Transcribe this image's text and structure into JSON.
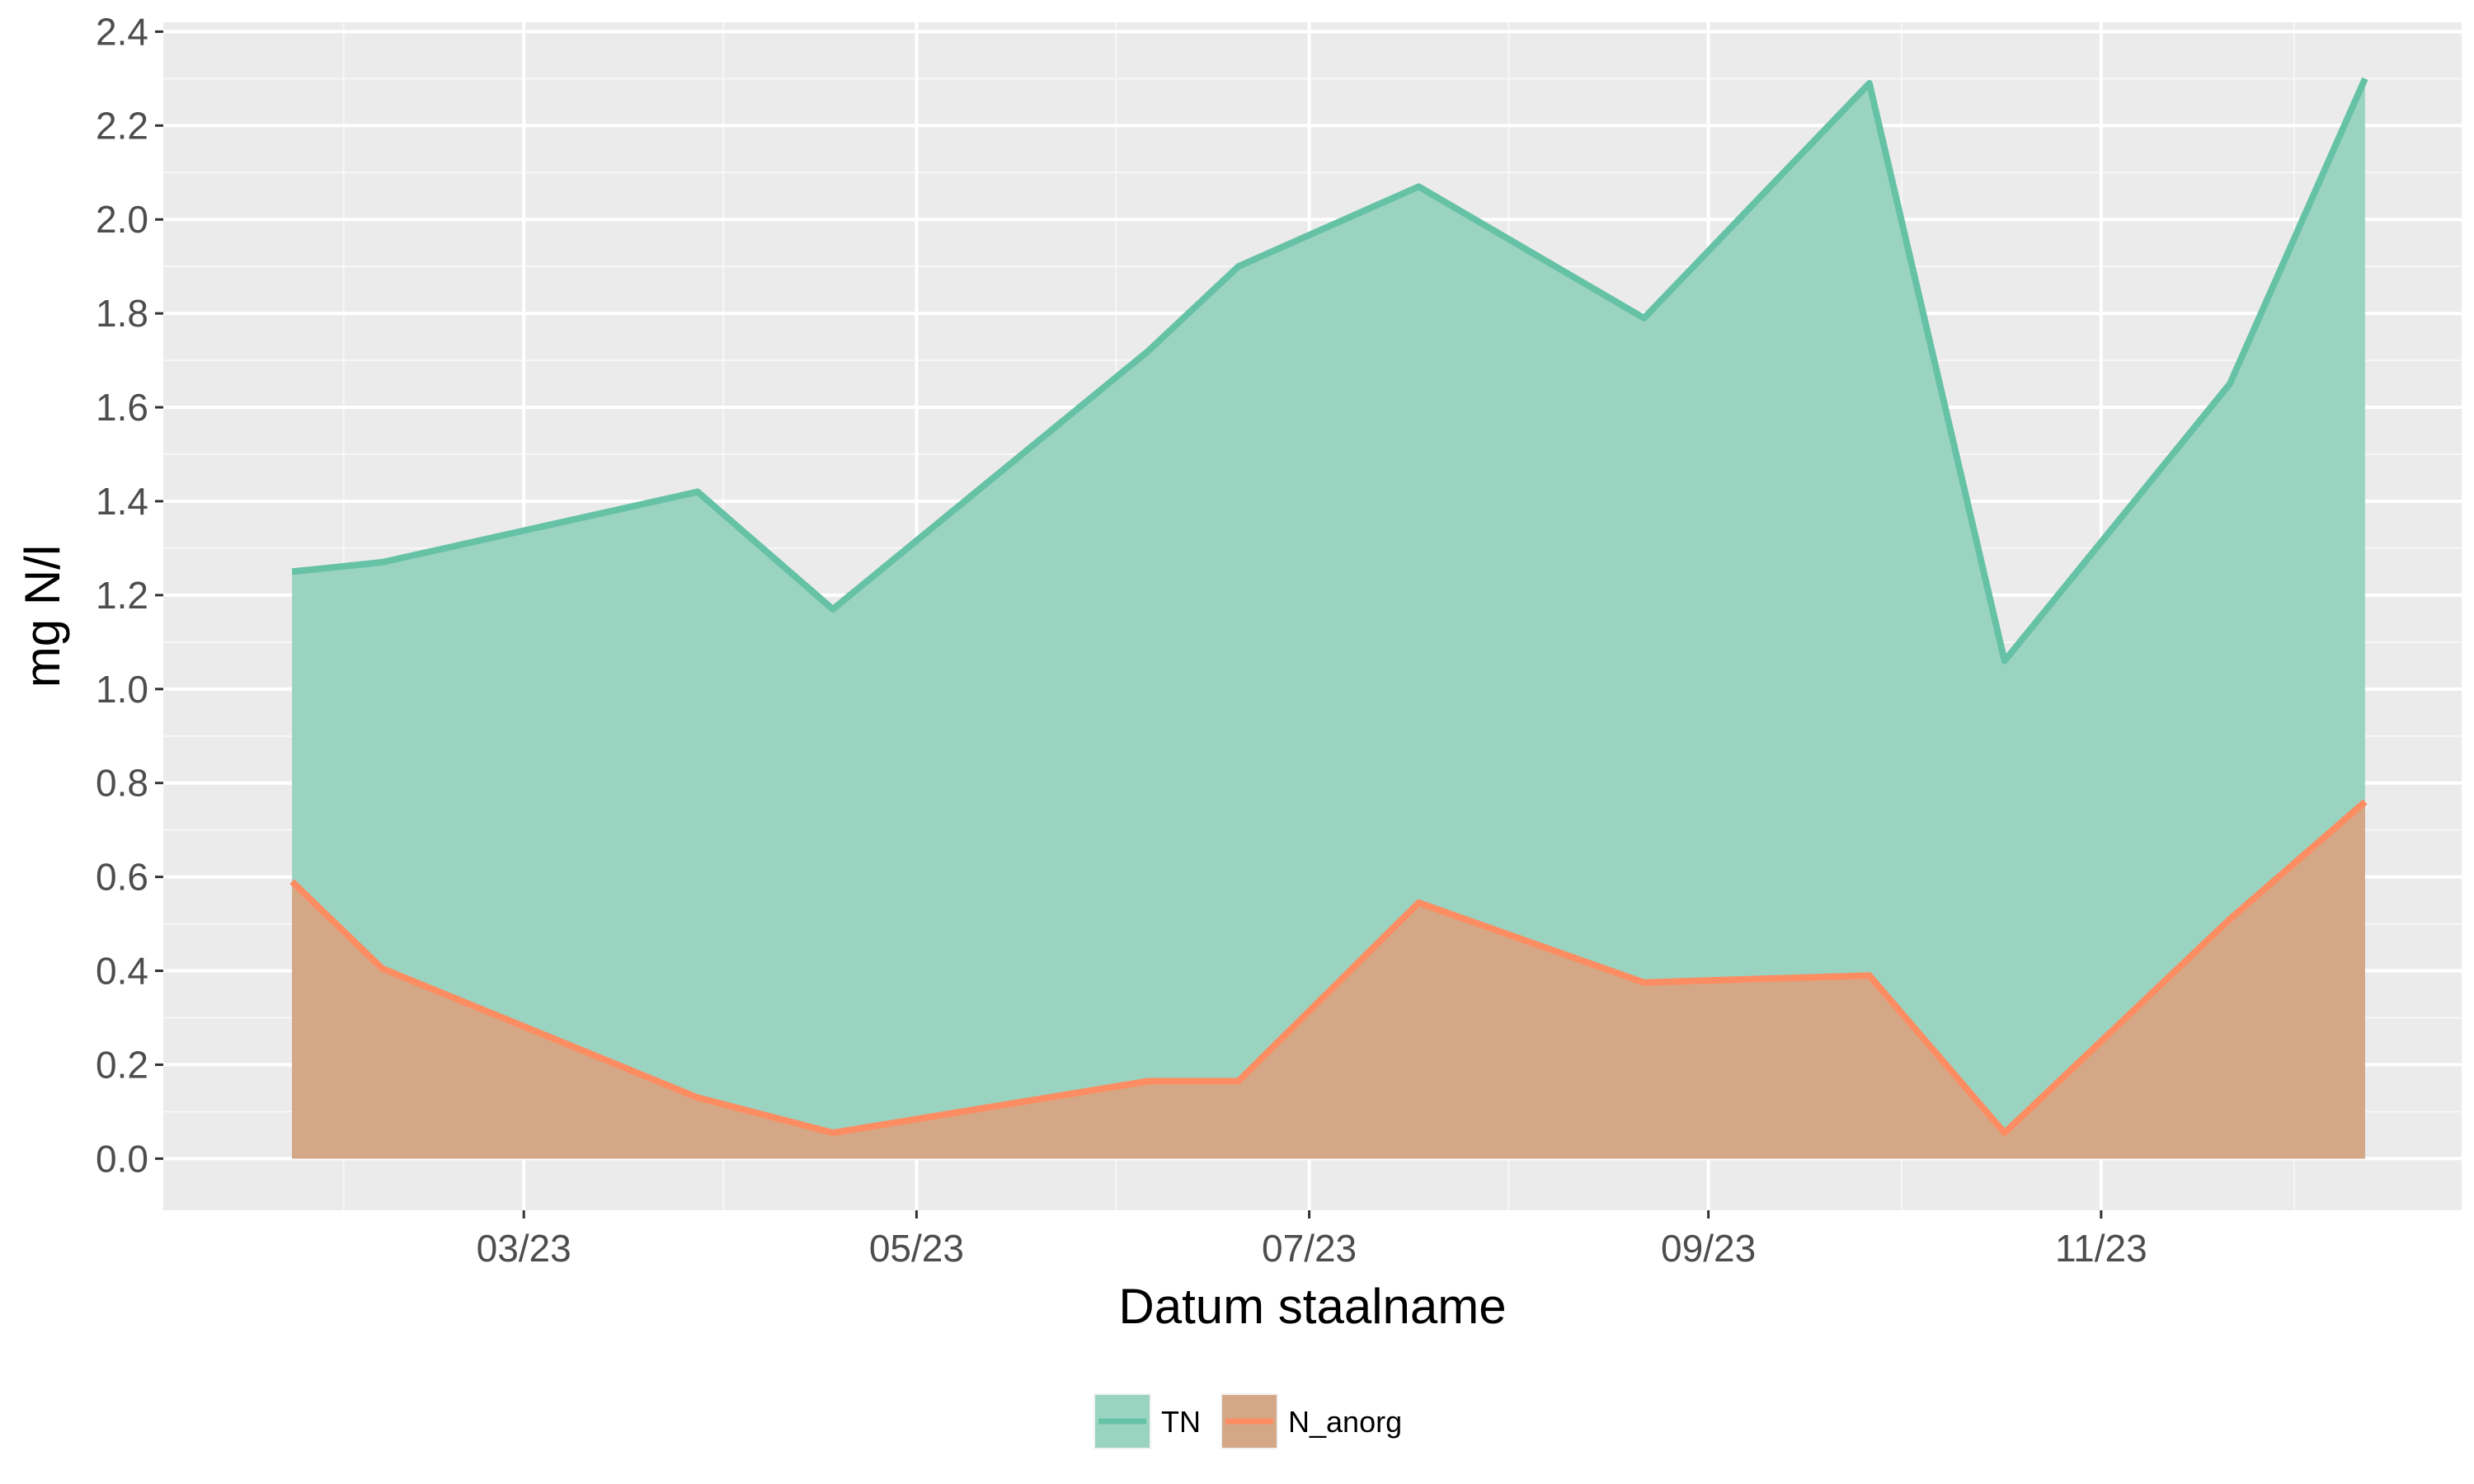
{
  "chart_data": {
    "type": "area",
    "xlabel": "Datum staalname",
    "ylabel": "mg N/l",
    "x_axis_kind": "date",
    "xlim": [
      "2023-01-04",
      "2023-12-27"
    ],
    "ylim": [
      -0.11,
      2.42
    ],
    "yticks": [
      0.0,
      0.2,
      0.4,
      0.6,
      0.8,
      1.0,
      1.2,
      1.4,
      1.6,
      1.8,
      2.0,
      2.2,
      2.4
    ],
    "ytick_labels": [
      "0.0",
      "0.2",
      "0.4",
      "0.6",
      "0.8",
      "1.0",
      "1.2",
      "1.4",
      "1.6",
      "1.8",
      "2.0",
      "2.2",
      "2.4"
    ],
    "xticks": [
      "2023-03-01",
      "2023-05-01",
      "2023-07-01",
      "2023-09-01",
      "2023-11-01"
    ],
    "xtick_labels": [
      "03/23",
      "05/23",
      "07/23",
      "09/23",
      "11/23"
    ],
    "x_minor_ticks": [
      "2023-02-01",
      "2023-04-01",
      "2023-06-01",
      "2023-08-01",
      "2023-10-01",
      "2023-12-01"
    ],
    "grid": true,
    "legend_position": "bottom",
    "series": [
      {
        "name": "TN",
        "color": "#66c2a5",
        "fill_color": "#9bd3c1",
        "points": [
          {
            "x": "2023-01-24",
            "y": 1.25
          },
          {
            "x": "2023-02-07",
            "y": 1.27
          },
          {
            "x": "2023-03-28",
            "y": 1.42
          },
          {
            "x": "2023-04-18",
            "y": 1.17
          },
          {
            "x": "2023-06-06",
            "y": 1.72
          },
          {
            "x": "2023-06-20",
            "y": 1.9
          },
          {
            "x": "2023-07-18",
            "y": 2.07
          },
          {
            "x": "2023-08-22",
            "y": 1.79
          },
          {
            "x": "2023-09-26",
            "y": 2.29
          },
          {
            "x": "2023-10-17",
            "y": 1.06
          },
          {
            "x": "2023-11-21",
            "y": 1.65
          },
          {
            "x": "2023-12-12",
            "y": 2.3
          }
        ]
      },
      {
        "name": "N_anorg",
        "color": "#fc8d62",
        "fill_color": "#d4a886",
        "points": [
          {
            "x": "2023-01-24",
            "y": 0.59
          },
          {
            "x": "2023-02-07",
            "y": 0.405
          },
          {
            "x": "2023-03-28",
            "y": 0.13
          },
          {
            "x": "2023-04-18",
            "y": 0.055
          },
          {
            "x": "2023-06-06",
            "y": 0.165
          },
          {
            "x": "2023-06-20",
            "y": 0.165
          },
          {
            "x": "2023-07-18",
            "y": 0.545
          },
          {
            "x": "2023-08-22",
            "y": 0.375
          },
          {
            "x": "2023-09-26",
            "y": 0.39
          },
          {
            "x": "2023-10-17",
            "y": 0.055
          },
          {
            "x": "2023-11-21",
            "y": 0.51
          },
          {
            "x": "2023-12-12",
            "y": 0.76
          }
        ]
      }
    ],
    "colors": {
      "panel_background": "#ebebeb",
      "grid_major": "#ffffff",
      "grid_minor": "#f7f7f7",
      "tick_text": "#4d4d4d",
      "title_text": "#000000"
    }
  }
}
